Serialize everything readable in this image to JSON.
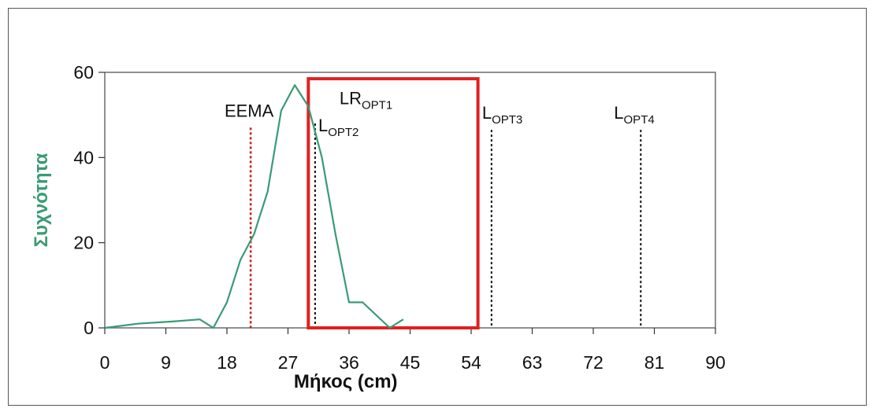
{
  "chart_data": {
    "type": "line",
    "xlabel": "Μήκος (cm)",
    "ylabel": "Συχνότητα",
    "xlim": [
      0,
      90
    ],
    "ylim": [
      0,
      60
    ],
    "xticks": [
      0,
      9,
      18,
      27,
      36,
      45,
      54,
      63,
      72,
      81,
      90
    ],
    "yticks": [
      0,
      20,
      40,
      60
    ],
    "grid": false,
    "series": [
      {
        "name": "",
        "color": "#3a9a74",
        "x": [
          0,
          5,
          10,
          14,
          16,
          18,
          20,
          22,
          24,
          26,
          28,
          30,
          32,
          34,
          36,
          38,
          40,
          42,
          44
        ],
        "y": [
          0,
          1,
          1.5,
          2,
          0,
          6,
          16,
          22,
          32,
          51,
          57,
          52,
          40,
          22,
          6,
          6,
          3,
          0,
          2
        ]
      }
    ],
    "vlines": [
      {
        "label": "EEMA",
        "x": 21.5,
        "y_top": 47,
        "color": "#cc1f1f",
        "style": "dotted"
      },
      {
        "label": "L",
        "sub": "OPT2",
        "x": 31,
        "y_top": 48,
        "color": "#111111",
        "style": "dotted"
      },
      {
        "label": "L",
        "sub": "OPT3",
        "x": 57,
        "y_top": 46.5,
        "color": "#111111",
        "style": "dotted"
      },
      {
        "label": "L",
        "sub": "OPT4",
        "x": 79,
        "y_top": 46.5,
        "color": "#111111",
        "style": "dotted"
      }
    ],
    "rect": {
      "label": "LR",
      "sub": "OPT1",
      "x0": 30,
      "x1": 55,
      "y0": 0,
      "y1": 58.5,
      "color": "#e02020"
    }
  }
}
